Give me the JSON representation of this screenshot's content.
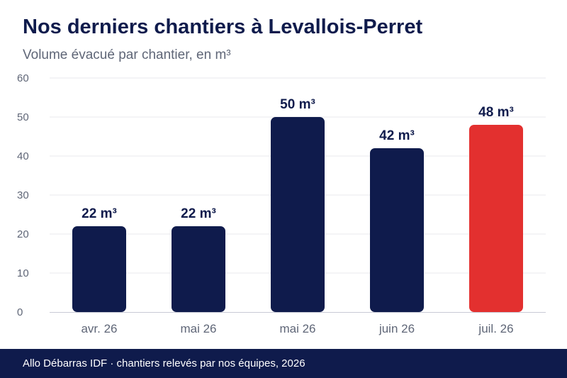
{
  "header": {
    "title": "Nos derniers chantiers à Levallois-Perret",
    "subtitle": "Volume évacué par chantier, en m³"
  },
  "footer": {
    "text": "Allo Débarras IDF · chantiers relevés par nos équipes, 2026"
  },
  "colors": {
    "bar": "#0f1b4c",
    "highlight": "#e3302f",
    "grid": "#e8e8ee",
    "axis_text": "#5f6677",
    "label_text": "#0f1b4c"
  },
  "chart_data": {
    "type": "bar",
    "title": "Nos derniers chantiers à Levallois-Perret",
    "subtitle": "Volume évacué par chantier, en m³",
    "categories": [
      "avr. 26",
      "mai 26",
      "mai 26",
      "juin 26",
      "juil. 26"
    ],
    "values": [
      22,
      22,
      50,
      42,
      48
    ],
    "labels": [
      "22 m³",
      "22 m³",
      "50 m³",
      "42 m³",
      "48 m³"
    ],
    "highlight_index": 4,
    "ylim": [
      0,
      60
    ],
    "yticks": [
      0,
      10,
      20,
      30,
      40,
      50,
      60
    ],
    "grid": true,
    "legend": "none"
  }
}
